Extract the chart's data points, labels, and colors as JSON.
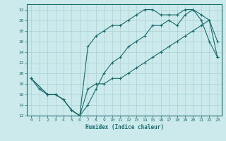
{
  "xlabel": "Humidex (Indice chaleur)",
  "xlim": [
    -0.5,
    23.5
  ],
  "ylim": [
    12,
    33
  ],
  "yticks": [
    12,
    14,
    16,
    18,
    20,
    22,
    24,
    26,
    28,
    30,
    32
  ],
  "xticks": [
    0,
    1,
    2,
    3,
    4,
    5,
    6,
    7,
    8,
    9,
    10,
    11,
    12,
    13,
    14,
    15,
    16,
    17,
    18,
    19,
    20,
    21,
    22,
    23
  ],
  "bg_color": "#cce9ec",
  "line_color": "#1a6b6b",
  "grid_color": "#b0d4d8",
  "line1_x": [
    0,
    1,
    2,
    3,
    4,
    5,
    6,
    7,
    8,
    9,
    10,
    11,
    12,
    13,
    14,
    15,
    16,
    17,
    18,
    19,
    20,
    21,
    22,
    23
  ],
  "line1_y": [
    19,
    17,
    16,
    16,
    15,
    13,
    12,
    14,
    17,
    20,
    22,
    23,
    25,
    26,
    27,
    29,
    29,
    30,
    29,
    31,
    32,
    31,
    30,
    26
  ],
  "line2_x": [
    0,
    2,
    3,
    4,
    5,
    6,
    7,
    8,
    9,
    10,
    11,
    12,
    13,
    14,
    15,
    16,
    17,
    18,
    19,
    20,
    21,
    22,
    23
  ],
  "line2_y": [
    19,
    16,
    16,
    15,
    13,
    12,
    25,
    27,
    28,
    29,
    29,
    30,
    31,
    32,
    32,
    31,
    31,
    31,
    32,
    32,
    30,
    26,
    23
  ],
  "line3_x": [
    0,
    2,
    3,
    4,
    5,
    6,
    7,
    8,
    9,
    10,
    11,
    12,
    13,
    14,
    15,
    16,
    17,
    18,
    19,
    20,
    21,
    22,
    23
  ],
  "line3_y": [
    19,
    16,
    16,
    15,
    13,
    12,
    17,
    18,
    18,
    19,
    19,
    20,
    21,
    22,
    23,
    24,
    25,
    26,
    27,
    28,
    29,
    30,
    23
  ]
}
